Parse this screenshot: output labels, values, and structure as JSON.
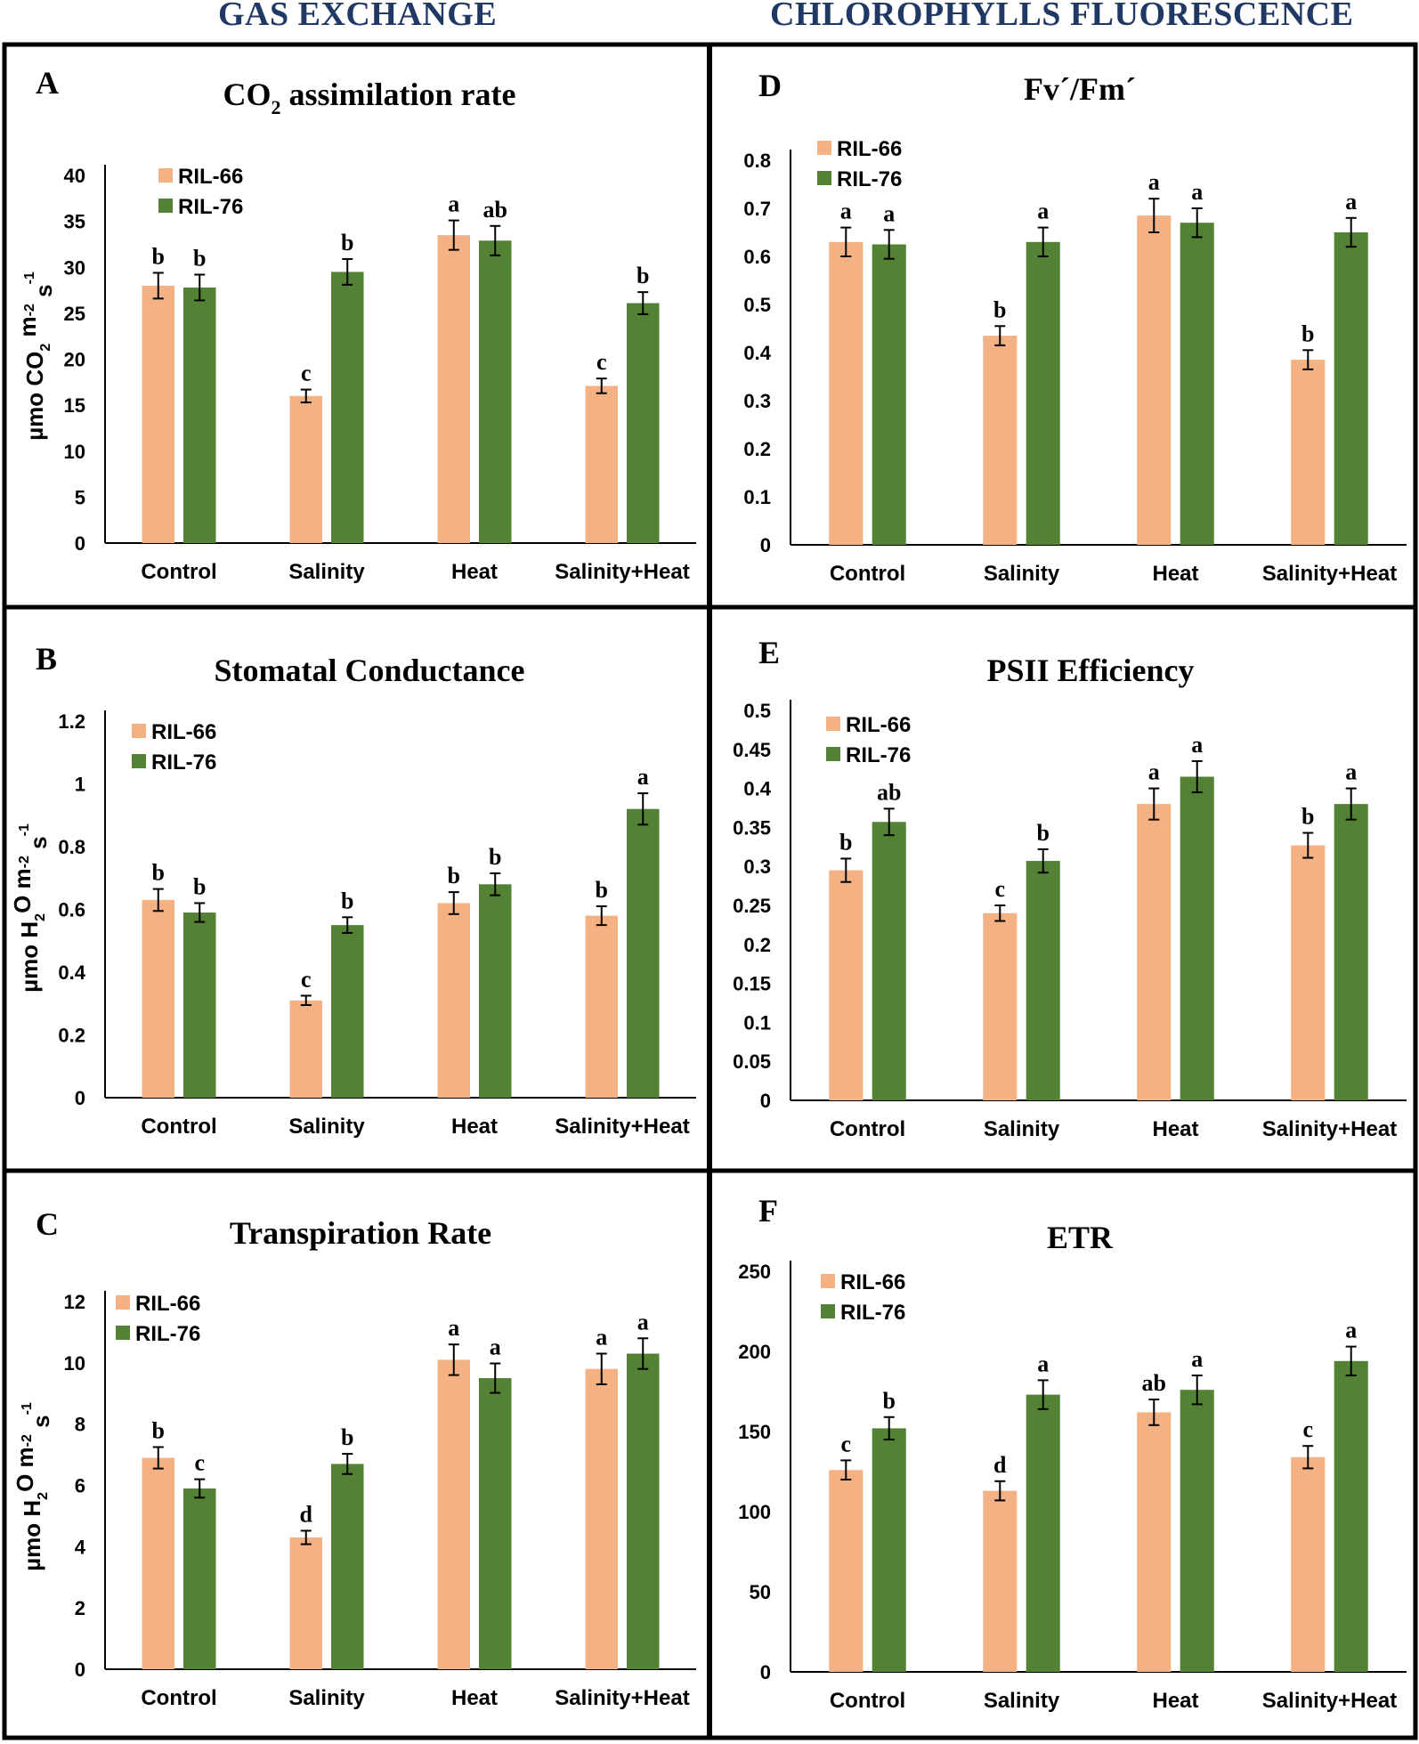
{
  "figure": {
    "left_heading": "GAS EXCHANGE",
    "right_heading": "CHLOROPHYLLS FLUORESCENCE"
  },
  "colors": {
    "RIL-66": "#f4b183",
    "RIL-76": "#548235",
    "frame": "#000000",
    "heading": "#1f3864"
  },
  "chart_data": [
    {
      "id": "A",
      "type": "bar",
      "panel_letter": "A",
      "title": "CO",
      "title_sub": "2",
      "title_rest": " assimilation rate",
      "ylabel_parts": [
        "µmo CO",
        "2",
        " m",
        "-2",
        " s",
        "-1"
      ],
      "categories": [
        "Control",
        "Salinity",
        "Heat",
        "Salinity+Heat"
      ],
      "ylim": [
        0,
        40
      ],
      "yticks": [
        0,
        5,
        10,
        15,
        20,
        25,
        30,
        35,
        40
      ],
      "series": [
        {
          "name": "RIL-66",
          "values": [
            28,
            16,
            33.5,
            17.1
          ],
          "errors": [
            1.4,
            0.7,
            1.6,
            0.8
          ],
          "letters": [
            "b",
            "c",
            "a",
            "c"
          ]
        },
        {
          "name": "RIL-76",
          "values": [
            27.8,
            29.5,
            32.9,
            26.1
          ],
          "errors": [
            1.4,
            1.4,
            1.6,
            1.2
          ],
          "letters": [
            "b",
            "b",
            "ab",
            "b"
          ]
        }
      ]
    },
    {
      "id": "B",
      "type": "bar",
      "panel_letter": "B",
      "title": "Stomatal Conductance",
      "title_sub": "",
      "title_rest": "",
      "ylabel_parts": [
        "µmo H",
        "2",
        "O m",
        "-2",
        " s",
        "-1"
      ],
      "categories": [
        "Control",
        "Salinity",
        "Heat",
        "Salinity+Heat"
      ],
      "ylim": [
        0,
        1.2
      ],
      "yticks": [
        0,
        0.2,
        0.4,
        0.6,
        0.8,
        1,
        1.2
      ],
      "series": [
        {
          "name": "RIL-66",
          "values": [
            0.63,
            0.31,
            0.62,
            0.58
          ],
          "errors": [
            0.035,
            0.015,
            0.035,
            0.03
          ],
          "letters": [
            "b",
            "c",
            "b",
            "b"
          ]
        },
        {
          "name": "RIL-76",
          "values": [
            0.59,
            0.55,
            0.68,
            0.92
          ],
          "errors": [
            0.03,
            0.025,
            0.035,
            0.05
          ],
          "letters": [
            "b",
            "b",
            "b",
            "a"
          ]
        }
      ]
    },
    {
      "id": "C",
      "type": "bar",
      "panel_letter": "C",
      "title": "Transpiration Rate",
      "title_sub": "",
      "title_rest": "",
      "ylabel_parts": [
        "µmo H",
        "2",
        "O m",
        "-2",
        " s",
        "-1"
      ],
      "categories": [
        "Control",
        "Salinity",
        "Heat",
        "Salinity+Heat"
      ],
      "ylim": [
        0,
        12
      ],
      "yticks": [
        0,
        2,
        4,
        6,
        8,
        10,
        12
      ],
      "series": [
        {
          "name": "RIL-66",
          "values": [
            6.9,
            4.3,
            10.1,
            9.8
          ],
          "errors": [
            0.35,
            0.22,
            0.5,
            0.5
          ],
          "letters": [
            "b",
            "d",
            "a",
            "a"
          ]
        },
        {
          "name": "RIL-76",
          "values": [
            5.9,
            6.7,
            9.5,
            10.3
          ],
          "errors": [
            0.3,
            0.33,
            0.48,
            0.5
          ],
          "letters": [
            "c",
            "b",
            "a",
            "a"
          ]
        }
      ]
    },
    {
      "id": "D",
      "type": "bar",
      "panel_letter": "D",
      "title": "Fv´/Fm´",
      "title_sub": "",
      "title_rest": "",
      "ylabel_parts": [],
      "categories": [
        "Control",
        "Salinity",
        "Heat",
        "Salinity+Heat"
      ],
      "ylim": [
        0,
        0.8
      ],
      "yticks": [
        0,
        0.1,
        0.2,
        0.3,
        0.4,
        0.5,
        0.6,
        0.7,
        0.8
      ],
      "series": [
        {
          "name": "RIL-66",
          "values": [
            0.63,
            0.435,
            0.685,
            0.385
          ],
          "errors": [
            0.03,
            0.02,
            0.035,
            0.02
          ],
          "letters": [
            "a",
            "b",
            "a",
            "b"
          ]
        },
        {
          "name": "RIL-76",
          "values": [
            0.625,
            0.63,
            0.67,
            0.65
          ],
          "errors": [
            0.03,
            0.03,
            0.03,
            0.03
          ],
          "letters": [
            "a",
            "a",
            "a",
            "a"
          ]
        }
      ]
    },
    {
      "id": "E",
      "type": "bar",
      "panel_letter": "E",
      "title": "PSII Efficiency",
      "title_sub": "",
      "title_rest": "",
      "ylabel_parts": [],
      "categories": [
        "Control",
        "Salinity",
        "Heat",
        "Salinity+Heat"
      ],
      "ylim": [
        0,
        0.5
      ],
      "yticks": [
        0,
        0.05,
        0.1,
        0.15,
        0.2,
        0.25,
        0.3,
        0.35,
        0.4,
        0.45,
        0.5
      ],
      "series": [
        {
          "name": "RIL-66",
          "values": [
            0.295,
            0.24,
            0.38,
            0.327
          ],
          "errors": [
            0.015,
            0.01,
            0.02,
            0.016
          ],
          "letters": [
            "b",
            "c",
            "a",
            "b"
          ]
        },
        {
          "name": "RIL-76",
          "values": [
            0.357,
            0.307,
            0.415,
            0.38
          ],
          "errors": [
            0.017,
            0.015,
            0.02,
            0.02
          ],
          "letters": [
            "ab",
            "b",
            "a",
            "a"
          ]
        }
      ]
    },
    {
      "id": "F",
      "type": "bar",
      "panel_letter": "F",
      "title": "ETR",
      "title_sub": "",
      "title_rest": "",
      "ylabel_parts": [],
      "categories": [
        "Control",
        "Salinity",
        "Heat",
        "Salinity+Heat"
      ],
      "ylim": [
        0,
        250
      ],
      "yticks": [
        0,
        50,
        100,
        150,
        200,
        250
      ],
      "series": [
        {
          "name": "RIL-66",
          "values": [
            126,
            113,
            162,
            134
          ],
          "errors": [
            6,
            6,
            8,
            7
          ],
          "letters": [
            "c",
            "d",
            "ab",
            "c"
          ]
        },
        {
          "name": "RIL-76",
          "values": [
            152,
            173,
            176,
            194
          ],
          "errors": [
            7,
            9,
            9,
            9
          ],
          "letters": [
            "b",
            "a",
            "a",
            "a"
          ]
        }
      ]
    }
  ]
}
